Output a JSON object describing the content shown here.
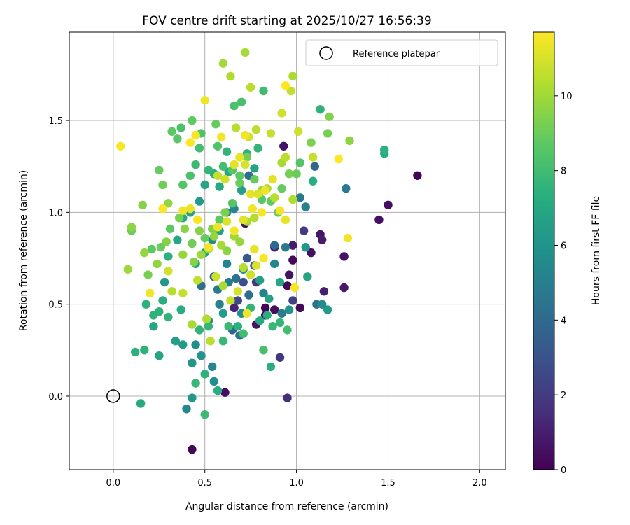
{
  "chart_data": {
    "type": "scatter",
    "title": "FOV centre drift starting at 2025/10/27 16:56:39",
    "xlabel": "Angular distance from reference (arcmin)",
    "ylabel": "Rotation from reference (arcmin)",
    "xlim": [
      -0.24,
      2.14
    ],
    "ylim": [
      -0.4,
      1.98
    ],
    "xticks": [
      0.0,
      0.5,
      1.0,
      1.5,
      2.0
    ],
    "xtick_labels": [
      "0.0",
      "0.5",
      "1.0",
      "1.5",
      "2.0"
    ],
    "yticks": [
      0.0,
      0.5,
      1.0,
      1.5
    ],
    "ytick_labels": [
      "0.0",
      "0.5",
      "1.0",
      "1.5"
    ],
    "grid": true,
    "colormap": "viridis",
    "colorbar": {
      "label": "Hours from first FF file",
      "range": [
        0,
        11.7
      ],
      "ticks": [
        0,
        2,
        4,
        6,
        8,
        10
      ],
      "tick_labels": [
        "0",
        "2",
        "4",
        "6",
        "8",
        "10"
      ]
    },
    "legend": {
      "position": "top-right",
      "entries": [
        "Reference platepar"
      ]
    },
    "reference_point": {
      "x": 0.0,
      "y": 0.0
    },
    "points_note": "x = angular distance, y = rotation, h = hours (color)",
    "points": [
      [
        1.66,
        1.2,
        0.1
      ],
      [
        1.5,
        1.04,
        0.4
      ],
      [
        1.45,
        0.96,
        0.5
      ],
      [
        1.26,
        0.76,
        0.6
      ],
      [
        1.26,
        0.59,
        0.8
      ],
      [
        1.13,
        0.88,
        0.7
      ],
      [
        1.14,
        0.85,
        0.9
      ],
      [
        1.15,
        0.57,
        1.0
      ],
      [
        1.08,
        0.78,
        0.5
      ],
      [
        1.02,
        0.48,
        0.2
      ],
      [
        0.98,
        0.74,
        0.3
      ],
      [
        0.96,
        0.66,
        0.6
      ],
      [
        0.95,
        0.6,
        0.2
      ],
      [
        0.88,
        0.47,
        0.4
      ],
      [
        0.83,
        0.48,
        0.1
      ],
      [
        0.83,
        0.44,
        0.3
      ],
      [
        0.78,
        0.39,
        0.6
      ],
      [
        0.95,
        -0.01,
        1.5
      ],
      [
        0.61,
        0.02,
        0.4
      ],
      [
        0.43,
        -0.29,
        0.2
      ],
      [
        0.91,
        0.21,
        1.9
      ],
      [
        0.93,
        1.36,
        0.6
      ],
      [
        0.88,
        0.81,
        0.8
      ],
      [
        0.72,
        0.94,
        0.5
      ],
      [
        0.98,
        0.82,
        0.9
      ],
      [
        1.04,
        0.9,
        2.0
      ],
      [
        0.98,
        0.52,
        2.2
      ],
      [
        0.78,
        0.62,
        1.8
      ],
      [
        0.66,
        0.48,
        1.2
      ],
      [
        0.68,
        0.52,
        2.6
      ],
      [
        0.71,
        0.62,
        2.9
      ],
      [
        0.73,
        0.75,
        3.1
      ],
      [
        0.55,
        0.65,
        3.5
      ],
      [
        0.48,
        0.6,
        4.2
      ],
      [
        0.65,
        0.36,
        3.8
      ],
      [
        0.69,
        0.33,
        4.4
      ],
      [
        0.88,
        0.82,
        4.0
      ],
      [
        0.94,
        0.81,
        4.6
      ],
      [
        1.11,
        0.5,
        4.5
      ],
      [
        1.27,
        1.13,
        4.8
      ],
      [
        1.1,
        1.25,
        3.9
      ],
      [
        1.02,
        1.08,
        4.7
      ],
      [
        1.05,
        1.03,
        5.2
      ],
      [
        0.92,
        0.45,
        4.8
      ],
      [
        0.58,
        0.5,
        5.1
      ],
      [
        0.62,
        0.72,
        5.3
      ],
      [
        0.7,
        0.45,
        5.6
      ],
      [
        0.52,
        0.41,
        5.5
      ],
      [
        0.45,
        0.28,
        5.7
      ],
      [
        0.48,
        0.22,
        6.0
      ],
      [
        0.54,
        0.16,
        5.4
      ],
      [
        0.55,
        0.08,
        5.8
      ],
      [
        0.43,
        0.18,
        6.1
      ],
      [
        0.38,
        0.28,
        6.3
      ],
      [
        0.34,
        0.3,
        6.5
      ],
      [
        0.4,
        -0.07,
        5.4
      ],
      [
        0.43,
        -0.01,
        6.2
      ],
      [
        0.57,
        0.58,
        4.9
      ],
      [
        0.6,
        0.45,
        6.4
      ],
      [
        0.63,
        0.62,
        5.0
      ],
      [
        0.67,
        0.64,
        4.3
      ],
      [
        0.71,
        0.69,
        5.9
      ],
      [
        0.74,
        0.55,
        4.1
      ],
      [
        0.77,
        0.71,
        3.6
      ],
      [
        0.8,
        0.63,
        6.6
      ],
      [
        0.82,
        0.56,
        5.2
      ],
      [
        0.85,
        0.53,
        6.7
      ],
      [
        0.88,
        0.72,
        5.3
      ],
      [
        0.91,
        0.62,
        6.9
      ],
      [
        0.96,
        0.47,
        6.0
      ],
      [
        1.05,
        0.81,
        6.1
      ],
      [
        1.06,
        0.65,
        6.8
      ],
      [
        1.17,
        0.47,
        6.3
      ],
      [
        1.14,
        0.5,
        5.5
      ],
      [
        0.45,
        0.72,
        6.9
      ],
      [
        0.5,
        0.78,
        6.4
      ],
      [
        0.54,
        0.85,
        5.7
      ],
      [
        0.58,
        0.9,
        6.6
      ],
      [
        0.62,
        1.0,
        4.6
      ],
      [
        0.66,
        1.02,
        5.4
      ],
      [
        0.7,
        1.12,
        6.5
      ],
      [
        0.74,
        1.2,
        4.2
      ],
      [
        0.77,
        1.24,
        6.7
      ],
      [
        0.63,
        1.22,
        7.0
      ],
      [
        0.58,
        1.14,
        7.1
      ],
      [
        0.55,
        1.21,
        7.2
      ],
      [
        0.5,
        1.15,
        6.8
      ],
      [
        0.47,
        1.06,
        6.3
      ],
      [
        0.42,
        1.0,
        6.7
      ],
      [
        0.38,
        0.97,
        7.1
      ],
      [
        0.35,
        0.85,
        6.9
      ],
      [
        0.3,
        0.76,
        7.4
      ],
      [
        0.28,
        0.62,
        6.2
      ],
      [
        0.27,
        0.52,
        7.3
      ],
      [
        0.25,
        0.46,
        7.5
      ],
      [
        0.22,
        0.38,
        6.9
      ],
      [
        0.18,
        0.5,
        7.4
      ],
      [
        0.15,
        -0.04,
        7.1
      ],
      [
        0.12,
        0.24,
        7.4
      ],
      [
        0.17,
        0.25,
        7.5
      ],
      [
        0.25,
        0.22,
        6.8
      ],
      [
        0.22,
        0.44,
        7.5
      ],
      [
        0.3,
        0.43,
        7.6
      ],
      [
        0.37,
        0.47,
        7.2
      ],
      [
        0.47,
        0.36,
        7.6
      ],
      [
        0.52,
        0.38,
        7.7
      ],
      [
        0.5,
        0.12,
        7.5
      ],
      [
        0.45,
        0.07,
        7.8
      ],
      [
        0.5,
        -0.1,
        7.9
      ],
      [
        0.57,
        0.03,
        7.3
      ],
      [
        0.6,
        0.3,
        7.8
      ],
      [
        0.63,
        0.38,
        7.9
      ],
      [
        0.68,
        0.38,
        7.4
      ],
      [
        0.71,
        0.34,
        8.0
      ],
      [
        0.75,
        0.48,
        7.6
      ],
      [
        0.8,
        0.41,
        7.1
      ],
      [
        0.84,
        0.44,
        7.3
      ],
      [
        0.87,
        0.38,
        7.8
      ],
      [
        0.86,
        0.16,
        7.3
      ],
      [
        0.82,
        0.25,
        8.2
      ],
      [
        0.91,
        0.4,
        7.7
      ],
      [
        0.95,
        0.36,
        8.1
      ],
      [
        1.09,
        1.17,
        7.3
      ],
      [
        1.13,
        1.56,
        7.5
      ],
      [
        1.48,
        1.32,
        7.2
      ],
      [
        1.48,
        1.34,
        7.4
      ],
      [
        0.73,
        1.32,
        7.5
      ],
      [
        0.79,
        1.35,
        7.6
      ],
      [
        0.82,
        1.66,
        8.0
      ],
      [
        0.7,
        1.6,
        8.2
      ],
      [
        0.66,
        1.58,
        8.3
      ],
      [
        0.62,
        1.33,
        7.6
      ],
      [
        0.57,
        1.36,
        8.4
      ],
      [
        0.52,
        1.23,
        7.7
      ],
      [
        0.47,
        1.35,
        8.1
      ],
      [
        0.45,
        1.26,
        7.9
      ],
      [
        0.42,
        1.2,
        8.3
      ],
      [
        0.38,
        1.15,
        8.5
      ],
      [
        0.35,
        1.4,
        8.6
      ],
      [
        0.32,
        1.44,
        8.7
      ],
      [
        0.37,
        1.46,
        8.3
      ],
      [
        0.43,
        1.5,
        8.8
      ],
      [
        0.48,
        1.43,
        8.4
      ],
      [
        0.56,
        1.48,
        8.9
      ],
      [
        0.6,
        1.25,
        8.1
      ],
      [
        0.65,
        1.23,
        8.6
      ],
      [
        0.69,
        1.2,
        8.7
      ],
      [
        0.69,
        1.16,
        9.0
      ],
      [
        0.73,
        1.3,
        9.1
      ],
      [
        0.77,
        1.18,
        8.9
      ],
      [
        0.81,
        1.07,
        8.6
      ],
      [
        0.86,
        1.06,
        8.8
      ],
      [
        0.9,
        1.0,
        9.1
      ],
      [
        0.92,
        1.13,
        8.9
      ],
      [
        0.96,
        1.21,
        9.2
      ],
      [
        1.0,
        1.21,
        9.0
      ],
      [
        1.02,
        1.27,
        8.5
      ],
      [
        1.08,
        1.38,
        9.3
      ],
      [
        1.17,
        1.43,
        9.2
      ],
      [
        1.18,
        1.52,
        9.4
      ],
      [
        1.29,
        1.39,
        9.6
      ],
      [
        0.65,
        1.05,
        8.5
      ],
      [
        0.61,
        1.0,
        9.3
      ],
      [
        0.58,
        0.96,
        8.8
      ],
      [
        0.54,
        0.91,
        9.4
      ],
      [
        0.5,
        0.86,
        8.9
      ],
      [
        0.47,
        0.9,
        9.5
      ],
      [
        0.43,
        0.83,
        9.1
      ],
      [
        0.39,
        0.91,
        9.6
      ],
      [
        0.36,
        0.97,
        9.3
      ],
      [
        0.31,
        0.91,
        8.7
      ],
      [
        0.29,
        0.84,
        9.5
      ],
      [
        0.26,
        0.81,
        9.0
      ],
      [
        0.24,
        0.72,
        9.7
      ],
      [
        0.21,
        0.8,
        8.7
      ],
      [
        0.19,
        0.66,
        9.2
      ],
      [
        0.17,
        0.78,
        9.8
      ],
      [
        0.16,
        1.04,
        9.5
      ],
      [
        0.1,
        0.9,
        9.0
      ],
      [
        0.1,
        0.92,
        9.6
      ],
      [
        0.08,
        0.69,
        9.9
      ],
      [
        0.25,
        1.23,
        8.9
      ],
      [
        0.27,
        1.15,
        9.1
      ],
      [
        0.3,
        1.05,
        9.7
      ],
      [
        0.38,
        0.77,
        9.8
      ],
      [
        0.44,
        0.73,
        9.5
      ],
      [
        0.48,
        0.77,
        9.9
      ],
      [
        0.52,
        0.8,
        10.0
      ],
      [
        0.55,
        0.87,
        9.8
      ],
      [
        0.59,
        0.82,
        10.1
      ],
      [
        0.62,
        0.79,
        9.6
      ],
      [
        0.66,
        0.87,
        10.0
      ],
      [
        0.69,
        0.84,
        9.8
      ],
      [
        0.73,
        0.95,
        10.2
      ],
      [
        0.77,
        0.97,
        10.3
      ],
      [
        0.81,
        1.12,
        10.0
      ],
      [
        0.84,
        1.13,
        10.2
      ],
      [
        0.88,
        1.08,
        10.4
      ],
      [
        0.92,
        1.27,
        10.1
      ],
      [
        0.94,
        1.3,
        10.5
      ],
      [
        0.98,
        1.07,
        10.3
      ],
      [
        1.01,
        1.44,
        10.8
      ],
      [
        0.97,
        1.66,
        10.6
      ],
      [
        0.92,
        1.54,
        10.9
      ],
      [
        0.86,
        1.43,
        10.7
      ],
      [
        0.78,
        1.45,
        10.5
      ],
      [
        0.74,
        1.41,
        10.9
      ],
      [
        0.67,
        1.46,
        10.4
      ],
      [
        0.64,
        1.74,
        10.3
      ],
      [
        0.6,
        1.81,
        10.0
      ],
      [
        0.72,
        1.87,
        10.1
      ],
      [
        0.75,
        1.68,
        10.5
      ],
      [
        0.98,
        1.74,
        10.2
      ],
      [
        1.09,
        1.3,
        10.7
      ],
      [
        0.3,
        0.68,
        10.9
      ],
      [
        0.32,
        0.57,
        10.4
      ],
      [
        0.38,
        0.56,
        10.7
      ],
      [
        0.43,
        0.39,
        10.1
      ],
      [
        0.46,
        0.63,
        10.6
      ],
      [
        0.51,
        0.42,
        10.3
      ],
      [
        0.53,
        0.3,
        10.5
      ],
      [
        0.56,
        0.65,
        10.8
      ],
      [
        0.6,
        0.6,
        10.2
      ],
      [
        0.64,
        0.52,
        10.7
      ],
      [
        0.68,
        0.57,
        11.0
      ],
      [
        0.71,
        0.7,
        10.4
      ],
      [
        0.75,
        0.66,
        10.8
      ],
      [
        0.78,
        0.71,
        11.1
      ],
      [
        0.57,
        1.2,
        10.6
      ],
      [
        0.61,
        1.18,
        10.9
      ],
      [
        0.66,
        1.26,
        11.2
      ],
      [
        0.69,
        1.3,
        11.3
      ],
      [
        0.72,
        1.26,
        11.0
      ],
      [
        0.75,
        1.1,
        11.3
      ],
      [
        0.79,
        1.1,
        11.1
      ],
      [
        0.83,
        1.12,
        11.4
      ],
      [
        0.87,
        1.18,
        11.2
      ],
      [
        0.91,
        1.01,
        11.5
      ],
      [
        0.94,
        0.96,
        11.3
      ],
      [
        0.81,
        1.0,
        11.6
      ],
      [
        0.76,
        1.02,
        11.5
      ],
      [
        0.71,
        0.96,
        11.2
      ],
      [
        0.66,
        0.9,
        11.6
      ],
      [
        0.62,
        0.95,
        11.1
      ],
      [
        0.57,
        0.92,
        11.4
      ],
      [
        0.52,
        0.81,
        11.5
      ],
      [
        0.46,
        0.96,
        11.6
      ],
      [
        0.42,
        1.02,
        11.3
      ],
      [
        0.38,
        1.01,
        11.4
      ],
      [
        0.27,
        1.02,
        11.7
      ],
      [
        0.2,
        0.56,
        11.5
      ],
      [
        0.04,
        1.36,
        11.6
      ],
      [
        1.28,
        0.86,
        11.5
      ],
      [
        1.23,
        1.29,
        11.7
      ],
      [
        0.82,
        0.75,
        11.6
      ],
      [
        0.73,
        0.45,
        11.4
      ],
      [
        0.59,
        1.41,
        11.5
      ],
      [
        0.45,
        1.42,
        11.6
      ],
      [
        0.42,
        1.38,
        11.7
      ],
      [
        0.5,
        1.61,
        11.4
      ],
      [
        0.94,
        1.69,
        11.7
      ],
      [
        0.72,
        1.42,
        11.5
      ],
      [
        0.99,
        0.59,
        11.6
      ],
      [
        0.77,
        0.8,
        11.3
      ]
    ]
  }
}
